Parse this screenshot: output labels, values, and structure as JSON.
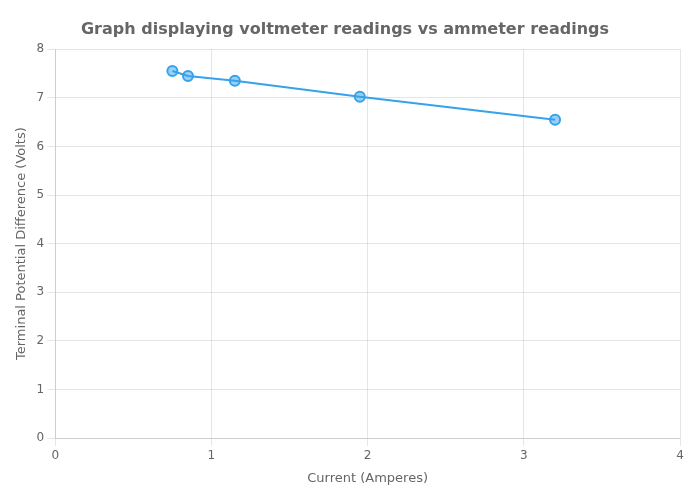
{
  "chart_data": {
    "type": "line",
    "title": "Graph displaying voltmeter readings vs ammeter readings",
    "xlabel": "Current (Amperes)",
    "ylabel": "Terminal Potential Difference (Volts)",
    "x": [
      0.75,
      0.85,
      1.15,
      1.95,
      3.2
    ],
    "values": [
      7.55,
      7.45,
      7.35,
      7.02,
      6.55
    ],
    "xlim": [
      0,
      4
    ],
    "ylim": [
      0,
      8
    ],
    "xticks": [
      0,
      1,
      2,
      3,
      4
    ],
    "yticks": [
      0,
      1,
      2,
      3,
      4,
      5,
      6,
      7,
      8
    ],
    "marker": "circle",
    "grid": true
  }
}
